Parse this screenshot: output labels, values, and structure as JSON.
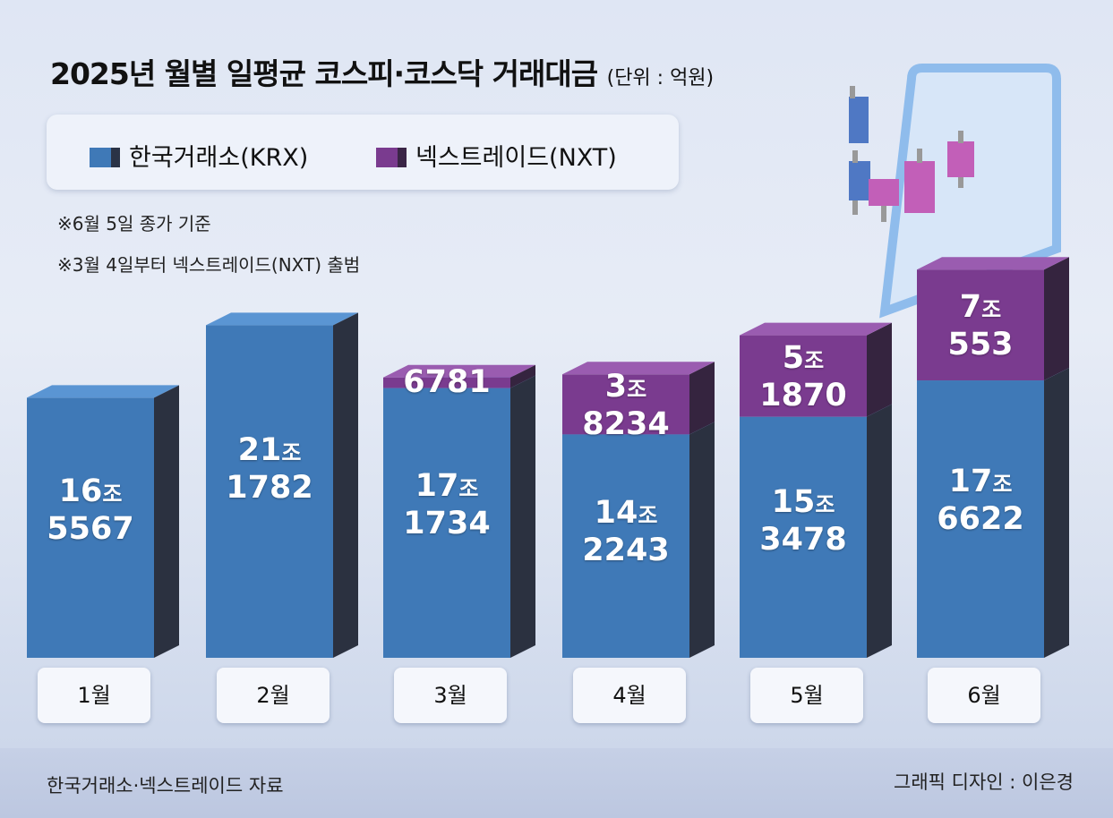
{
  "title": "2025년 월별 일평균 코스피·코스닥 거래대금",
  "unit": "(단위 : 억원)",
  "legend": [
    {
      "label": "한국거래소(KRX)",
      "color": "#3f79b7"
    },
    {
      "label": "넥스트레이드(NXT)",
      "color": "#7a3b8f"
    }
  ],
  "notes": [
    "※6월 5일 종가 기준",
    "※3월 4일부터 넥스트레이드(NXT) 출범"
  ],
  "source": "한국거래소·넥스트레이드 자료",
  "credit": "그래픽 디자인 : 이은경",
  "chart_data": {
    "type": "bar",
    "stacked": true,
    "categories": [
      "1월",
      "2월",
      "3월",
      "4월",
      "5월",
      "6월"
    ],
    "series": [
      {
        "name": "한국거래소(KRX)",
        "values": [
          165567,
          211782,
          171734,
          142243,
          153478,
          176622
        ],
        "labels": [
          [
            "16",
            "5567"
          ],
          [
            "21",
            "1782"
          ],
          [
            "17",
            "1734"
          ],
          [
            "14",
            "2243"
          ],
          [
            "15",
            "3478"
          ],
          [
            "17",
            "6622"
          ]
        ]
      },
      {
        "name": "넥스트레이드(NXT)",
        "values": [
          0,
          0,
          6781,
          38234,
          51870,
          70553
        ],
        "labels": [
          null,
          null,
          [
            null,
            "6781"
          ],
          [
            "3",
            "8234"
          ],
          [
            "5",
            "1870"
          ],
          [
            "7",
            "553"
          ]
        ]
      }
    ],
    "jo_unit": "조",
    "colors": {
      "krx": "#3f79b7",
      "nxt": "#7a3b8f"
    }
  }
}
